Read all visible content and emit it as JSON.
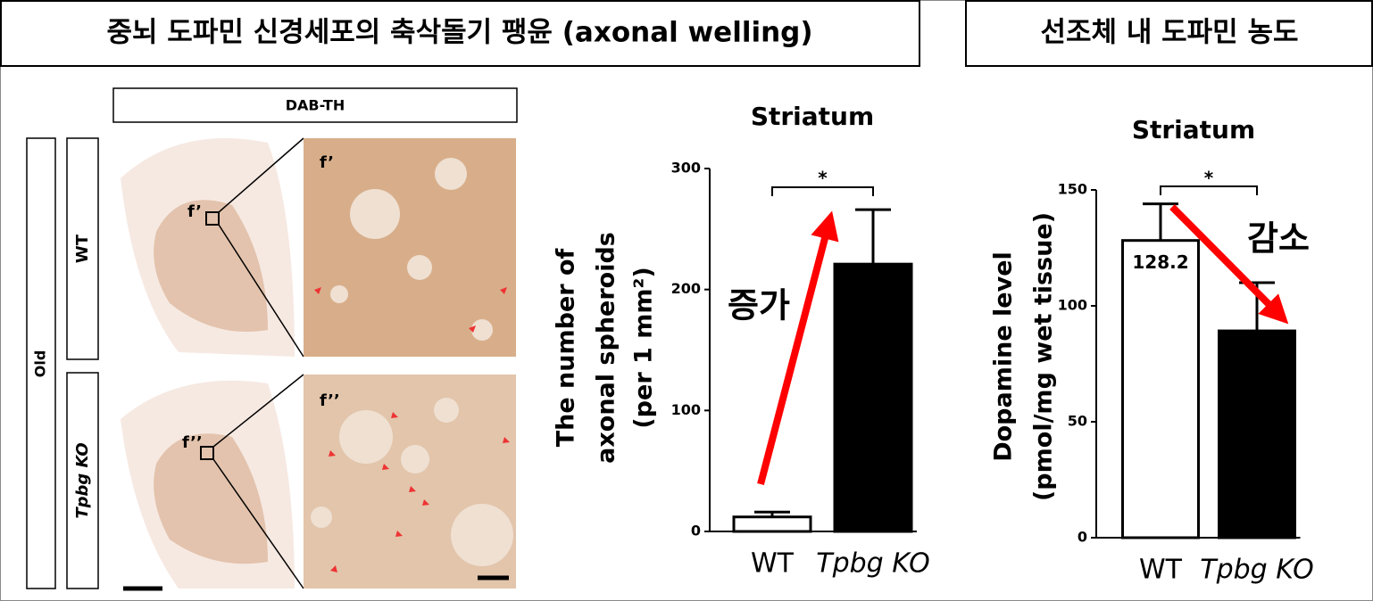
{
  "headers": {
    "left": "중뇌 도파민 신경세포의 축삭돌기 팽윤 (axonal welling)",
    "right": "선조체 내 도파민 농도"
  },
  "panel": {
    "stain": "DAB-TH",
    "age": "Old",
    "rows": [
      "WT",
      "Tpbg KO"
    ],
    "labels": [
      "f’",
      "f’’"
    ]
  },
  "chart_data": [
    {
      "type": "bar",
      "title": "Striatum",
      "ylabel": [
        "The number of",
        "axonal spheroids",
        "(per 1 mm²)"
      ],
      "categories": [
        "WT",
        "Tpbg KO"
      ],
      "values": [
        12,
        221
      ],
      "errors": [
        4,
        45
      ],
      "colors": [
        "#ffffff",
        "#000000"
      ],
      "ylim": [
        0,
        300
      ],
      "yticks": [
        0,
        100,
        200,
        300
      ],
      "annotations": [
        "*",
        "증가"
      ]
    },
    {
      "type": "bar",
      "title": "Striatum",
      "ylabel": [
        "Dopamine level",
        "(pmol/mg wet tissue)"
      ],
      "categories": [
        "WT",
        "Tpbg KO"
      ],
      "values": [
        128.2,
        89.2
      ],
      "errors": [
        15.8,
        20.8
      ],
      "colors": [
        "#ffffff",
        "#000000"
      ],
      "ylim": [
        0,
        150
      ],
      "yticks": [
        0,
        50,
        100,
        150
      ],
      "show_values": true,
      "annotations": [
        "*",
        "감소"
      ]
    }
  ]
}
